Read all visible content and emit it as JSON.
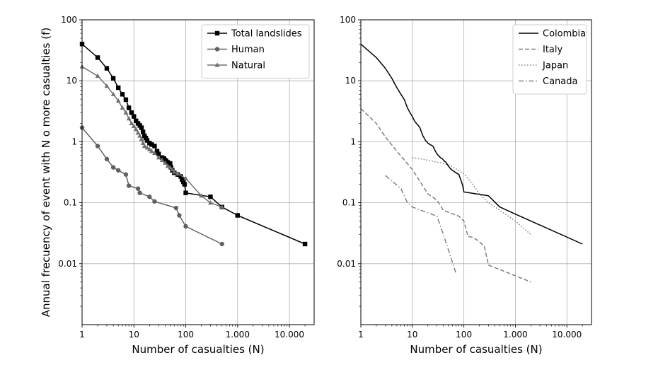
{
  "chart_data": [
    {
      "type": "line",
      "title": "",
      "xlabel": "Number of casualties (N)",
      "ylabel": "Annual frecuency of event with N o more casualties (f)",
      "xscale": "log",
      "yscale": "log",
      "xlim": [
        1,
        30000
      ],
      "ylim": [
        0.001,
        100
      ],
      "xtick_labels": [
        "1",
        "10",
        "100",
        "1.000",
        "10.000"
      ],
      "xtick_values": [
        1,
        10,
        100,
        1000,
        10000
      ],
      "ytick_labels": [
        "0.01",
        "0.1",
        "1",
        "10",
        "100"
      ],
      "ytick_values": [
        0.01,
        0.1,
        1,
        10,
        100
      ],
      "grid": true,
      "legend_position": "top-right",
      "series": [
        {
          "name": "Total landslides",
          "color": "#000000",
          "marker": "square",
          "linestyle": "solid",
          "x": [
            1,
            2,
            3,
            4,
            5,
            6,
            7,
            8,
            9,
            10,
            11,
            12,
            13,
            14,
            15,
            16,
            17,
            18,
            20,
            22,
            25,
            28,
            30,
            35,
            38,
            40,
            42,
            45,
            50,
            52,
            55,
            60,
            70,
            80,
            85,
            90,
            95,
            100,
            300,
            500,
            1000,
            20000
          ],
          "y": [
            40,
            24,
            16,
            11,
            7.7,
            6.0,
            4.9,
            3.6,
            3.0,
            2.6,
            2.2,
            2.0,
            1.85,
            1.7,
            1.45,
            1.25,
            1.15,
            1.05,
            0.95,
            0.9,
            0.85,
            0.7,
            0.63,
            0.55,
            0.53,
            0.5,
            0.48,
            0.46,
            0.44,
            0.38,
            0.34,
            0.31,
            0.29,
            0.27,
            0.24,
            0.22,
            0.2,
            0.145,
            0.125,
            0.085,
            0.062,
            0.021
          ]
        },
        {
          "name": "Human",
          "color": "#606060",
          "marker": "circle",
          "linestyle": "solid",
          "x": [
            1,
            2,
            3,
            4,
            5,
            7,
            8,
            12,
            13,
            20,
            25,
            65,
            75,
            100,
            500
          ],
          "y": [
            1.7,
            0.85,
            0.52,
            0.38,
            0.34,
            0.29,
            0.19,
            0.17,
            0.145,
            0.125,
            0.105,
            0.082,
            0.062,
            0.041,
            0.021
          ]
        },
        {
          "name": "Natural",
          "color": "#707070",
          "marker": "triangle",
          "linestyle": "solid",
          "x": [
            1,
            2,
            3,
            4,
            5,
            6,
            7,
            8,
            9,
            10,
            11,
            12,
            13,
            14,
            15,
            16,
            18,
            20,
            22,
            25,
            30,
            35,
            40,
            45,
            50,
            55,
            60,
            70,
            100,
            200,
            300,
            500
          ],
          "y": [
            17,
            12,
            8.2,
            6.0,
            4.7,
            3.6,
            3.0,
            2.4,
            2.0,
            1.8,
            1.6,
            1.4,
            1.25,
            1.1,
            0.95,
            0.85,
            0.8,
            0.75,
            0.7,
            0.65,
            0.55,
            0.5,
            0.45,
            0.4,
            0.38,
            0.35,
            0.32,
            0.3,
            0.25,
            0.13,
            0.1,
            0.085
          ]
        }
      ]
    },
    {
      "type": "line",
      "title": "",
      "xlabel": "Number of casualties (N)",
      "ylabel": "",
      "xscale": "log",
      "yscale": "log",
      "xlim": [
        1,
        30000
      ],
      "ylim": [
        0.001,
        100
      ],
      "xtick_labels": [
        "1",
        "10",
        "100",
        "1.000",
        "10.000"
      ],
      "xtick_values": [
        1,
        10,
        100,
        1000,
        10000
      ],
      "ytick_labels": [
        "0.01",
        "0.1",
        "1",
        "10",
        "100"
      ],
      "ytick_values": [
        0.01,
        0.1,
        1,
        10,
        100
      ],
      "grid": true,
      "legend_position": "top-right",
      "series": [
        {
          "name": "Colombia",
          "color": "#000000",
          "linestyle": "solid",
          "x": [
            1,
            2,
            3,
            4,
            5,
            6,
            7,
            8,
            9,
            10,
            11,
            12,
            13,
            14,
            15,
            16,
            17,
            18,
            20,
            22,
            25,
            28,
            30,
            35,
            38,
            40,
            42,
            45,
            50,
            55,
            60,
            70,
            80,
            85,
            90,
            95,
            100,
            300,
            500,
            1000,
            20000
          ],
          "y": [
            40,
            24,
            16,
            11,
            7.7,
            6.0,
            4.9,
            3.6,
            3.0,
            2.6,
            2.2,
            2.0,
            1.85,
            1.7,
            1.45,
            1.25,
            1.15,
            1.05,
            0.95,
            0.9,
            0.85,
            0.7,
            0.63,
            0.55,
            0.53,
            0.5,
            0.48,
            0.46,
            0.4,
            0.36,
            0.34,
            0.31,
            0.29,
            0.25,
            0.22,
            0.19,
            0.15,
            0.13,
            0.085,
            0.065,
            0.021
          ]
        },
        {
          "name": "Italy",
          "color": "#808080",
          "linestyle": "dashed",
          "x": [
            1,
            2,
            3,
            5,
            10,
            20,
            30,
            40,
            80,
            100,
            120,
            150,
            200,
            250,
            300,
            2000
          ],
          "y": [
            3.5,
            2.0,
            1.2,
            0.7,
            0.35,
            0.14,
            0.11,
            0.075,
            0.06,
            0.05,
            0.028,
            0.027,
            0.023,
            0.019,
            0.0095,
            0.005
          ]
        },
        {
          "name": "Japan",
          "color": "#808080",
          "linestyle": "dotted",
          "x": [
            10,
            20,
            50,
            70,
            100,
            150,
            200,
            300,
            500,
            1000,
            2000
          ],
          "y": [
            0.55,
            0.5,
            0.42,
            0.36,
            0.3,
            0.2,
            0.14,
            0.1,
            0.075,
            0.05,
            0.03
          ]
        },
        {
          "name": "Canada",
          "color": "#808080",
          "linestyle": "dashdot",
          "x": [
            3,
            6,
            8,
            10,
            30,
            40,
            70
          ],
          "y": [
            0.28,
            0.17,
            0.1,
            0.085,
            0.06,
            0.03,
            0.007
          ]
        }
      ]
    }
  ]
}
